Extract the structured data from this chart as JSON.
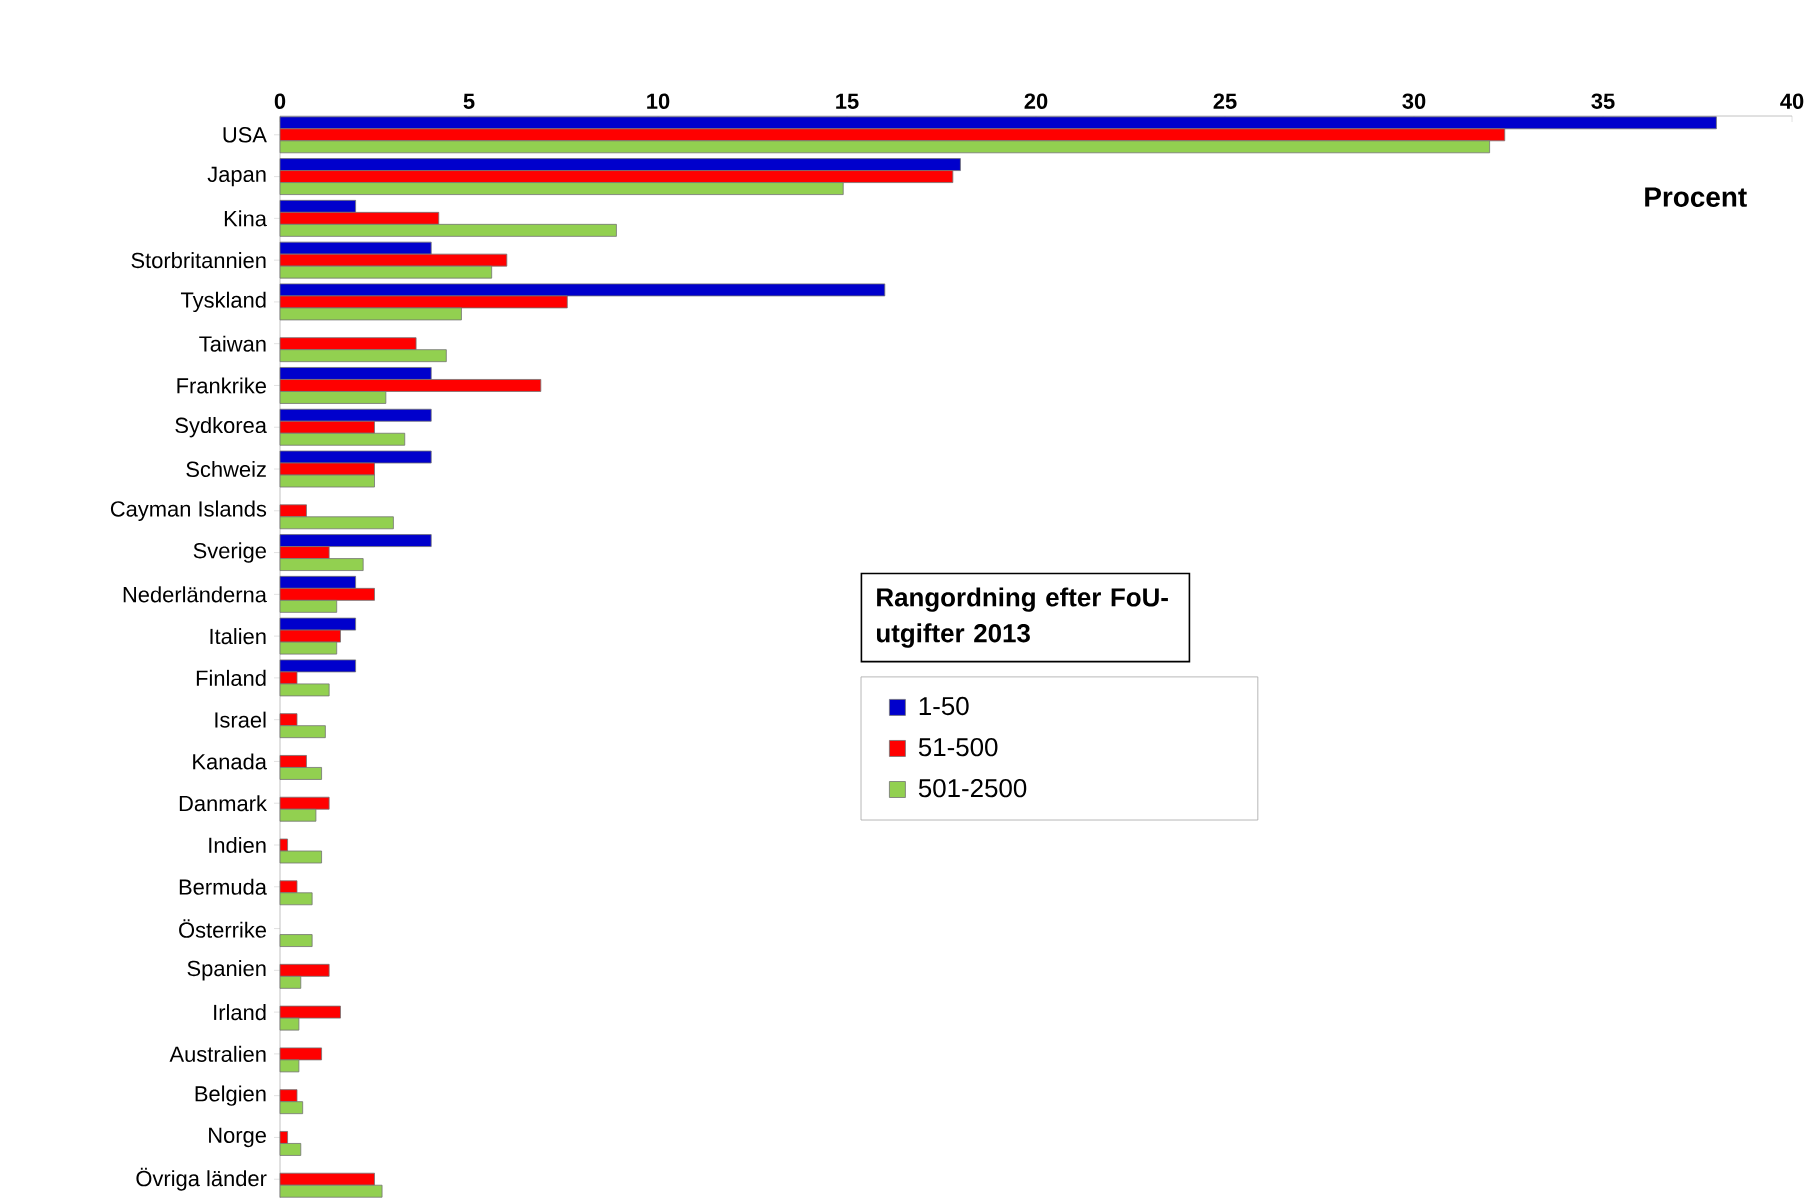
{
  "chart_data": {
    "type": "bar",
    "orientation": "horizontal",
    "legend_title": "Rangordning efter FoU-utgifter 2013",
    "annotations": [
      "Procent"
    ],
    "categories": [
      "USA",
      "Japan",
      "Kina",
      "Storbritannien",
      "Tyskland",
      "Taiwan",
      "Frankrike",
      "Sydkorea",
      "Schweiz",
      "Cayman Islands",
      "Sverige",
      "Nederländerna",
      "Italien",
      "Finland",
      "Israel",
      "Kanada",
      "Danmark",
      "Indien",
      "Bermuda",
      "Österrike",
      "Spanien",
      "Irland",
      "Australien",
      "Belgien",
      "Norge",
      "Övriga länder"
    ],
    "series": [
      {
        "name": "1-50",
        "color": "#0000cc",
        "values": [
          38.0,
          18.0,
          2.0,
          4.0,
          16.0,
          null,
          4.0,
          4.0,
          4.0,
          null,
          4.0,
          2.0,
          2.0,
          2.0,
          null,
          null,
          null,
          null,
          null,
          null,
          null,
          null,
          null,
          null,
          null,
          null
        ]
      },
      {
        "name": "51-500",
        "color": "#ff0000",
        "values": [
          32.4,
          17.8,
          4.2,
          6.0,
          7.6,
          3.6,
          6.9,
          2.5,
          2.5,
          0.7,
          1.3,
          2.5,
          1.6,
          0.45,
          0.45,
          0.7,
          1.3,
          0.2,
          0.45,
          null,
          1.3,
          1.6,
          1.1,
          0.45,
          0.2,
          2.5
        ]
      },
      {
        "name": "501-2500",
        "color": "#92d050",
        "values": [
          32.0,
          14.9,
          8.9,
          5.6,
          4.8,
          4.4,
          2.8,
          3.3,
          2.5,
          3.0,
          2.2,
          1.5,
          1.5,
          1.3,
          1.2,
          1.1,
          0.95,
          1.1,
          0.85,
          0.85,
          0.55,
          0.5,
          0.5,
          0.6,
          0.55,
          2.7
        ]
      }
    ],
    "xlim": [
      0,
      40
    ],
    "xticks": [
      0,
      5,
      10,
      15,
      20,
      25,
      30,
      35,
      40
    ],
    "legend": "center"
  }
}
